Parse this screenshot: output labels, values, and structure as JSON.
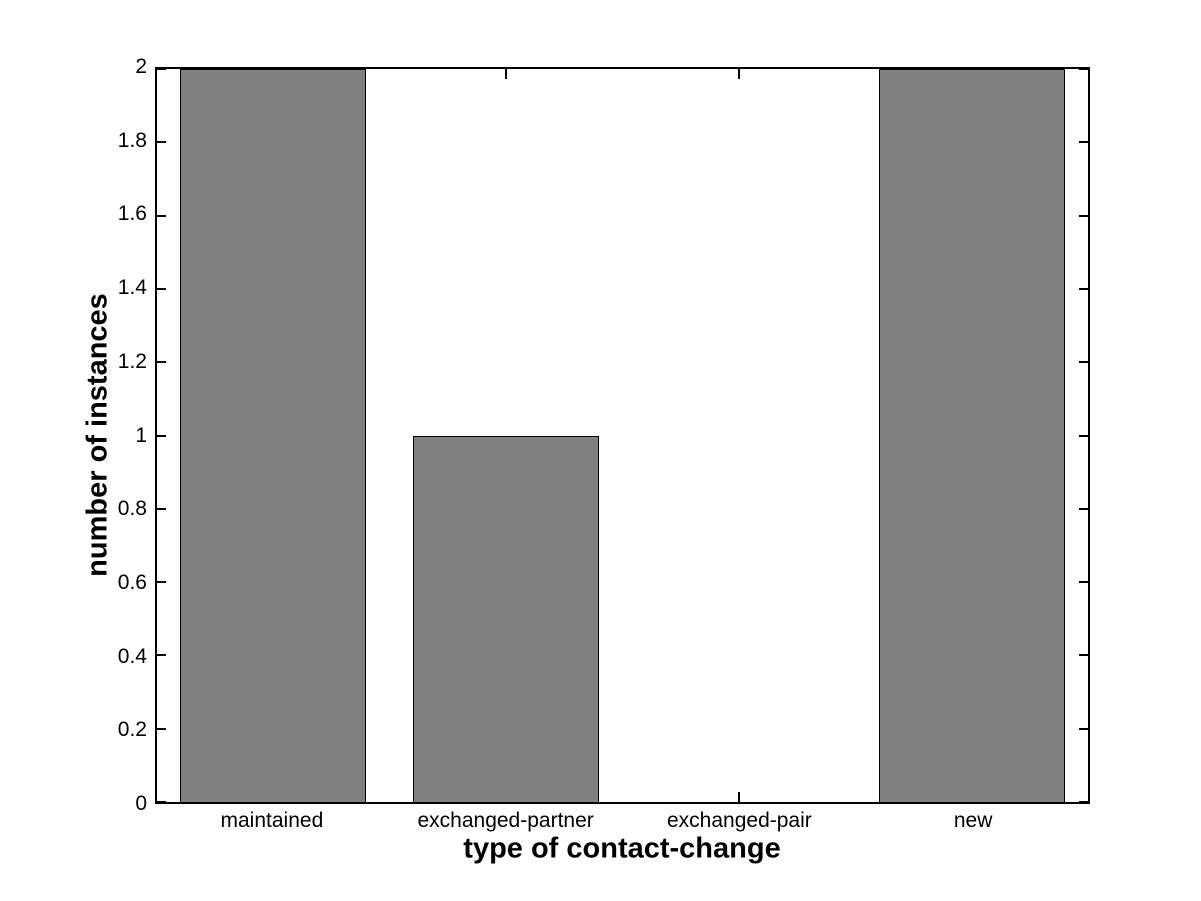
{
  "chart_data": {
    "type": "bar",
    "title": "",
    "xlabel": "type of contact-change",
    "ylabel": "number of instances",
    "categories": [
      "maintained",
      "exchanged-partner",
      "exchanged-pair",
      "new"
    ],
    "values": [
      2,
      1,
      0,
      2
    ],
    "ylim": [
      0,
      2
    ],
    "xlim": [
      0.5,
      4.5
    ],
    "bar_width_units": 0.8,
    "y_ticks": [
      {
        "value": 0,
        "label": "0"
      },
      {
        "value": 0.2,
        "label": "0.2"
      },
      {
        "value": 0.4,
        "label": "0.4"
      },
      {
        "value": 0.6,
        "label": "0.6"
      },
      {
        "value": 0.8,
        "label": "0.8"
      },
      {
        "value": 1,
        "label": "1"
      },
      {
        "value": 1.2,
        "label": "1.2"
      },
      {
        "value": 1.4,
        "label": "1.4"
      },
      {
        "value": 1.6,
        "label": "1.6"
      },
      {
        "value": 1.8,
        "label": "1.8"
      },
      {
        "value": 2,
        "label": "2"
      }
    ],
    "grid": false,
    "legend": null,
    "colors": {
      "bar_fill": "#808080",
      "bar_edge": "#000000",
      "axis": "#000000",
      "background": "#ffffff",
      "text": "#000000"
    }
  }
}
